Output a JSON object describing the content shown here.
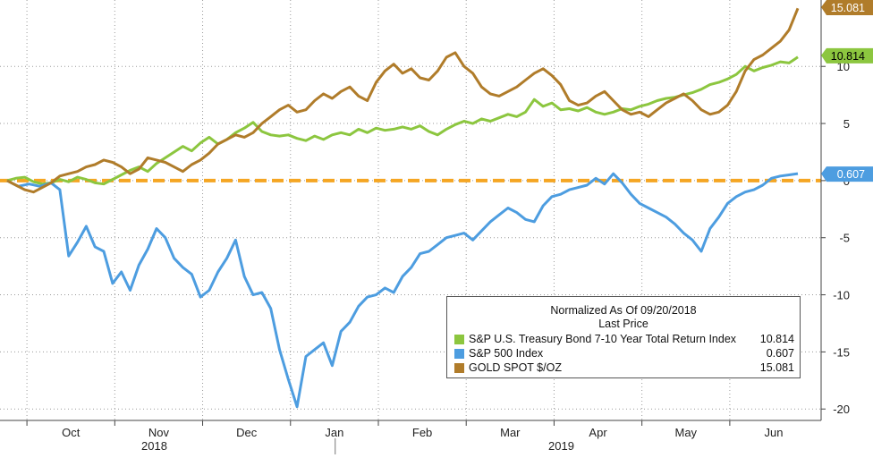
{
  "chart_data": {
    "type": "line",
    "ylim": [
      -21,
      15.5
    ],
    "yticks": [
      -20,
      -15,
      -10,
      -5,
      0,
      5,
      10
    ],
    "x_month_labels": [
      "Oct",
      "Nov",
      "Dec",
      "Jan",
      "Feb",
      "Mar",
      "Apr",
      "May",
      "Jun"
    ],
    "x_year_labels": [
      "2018",
      "2019"
    ],
    "grid": true,
    "legend": {
      "title_line1": "Normalized As Of 09/20/2018",
      "title_line2": "Last Price",
      "placement": "bottom-right"
    },
    "series": [
      {
        "name": "S&P U.S. Treasury Bond 7-10 Year Total Return Index",
        "last_value": "10.814",
        "color": "#8cc63f",
        "points": [
          [
            0,
            0
          ],
          [
            0.4,
            0.2
          ],
          [
            0.8,
            0.3
          ],
          [
            1.2,
            -0.1
          ],
          [
            1.6,
            -0.3
          ],
          [
            2.0,
            -0.2
          ],
          [
            2.4,
            0.1
          ],
          [
            2.8,
            -0.1
          ],
          [
            3.2,
            0.3
          ],
          [
            3.6,
            0.1
          ],
          [
            4.0,
            -0.2
          ],
          [
            4.4,
            -0.3
          ],
          [
            4.8,
            0.1
          ],
          [
            5.2,
            0.5
          ],
          [
            5.6,
            0.9
          ],
          [
            6.0,
            1.2
          ],
          [
            6.4,
            0.8
          ],
          [
            6.8,
            1.5
          ],
          [
            7.2,
            2.0
          ],
          [
            7.6,
            2.5
          ],
          [
            8.0,
            3.0
          ],
          [
            8.4,
            2.6
          ],
          [
            8.8,
            3.3
          ],
          [
            9.2,
            3.8
          ],
          [
            9.6,
            3.2
          ],
          [
            10.0,
            3.6
          ],
          [
            10.4,
            4.2
          ],
          [
            10.8,
            4.6
          ],
          [
            11.2,
            5.1
          ],
          [
            11.6,
            4.3
          ],
          [
            12.0,
            4.0
          ],
          [
            12.4,
            3.9
          ],
          [
            12.8,
            4.0
          ],
          [
            13.2,
            3.7
          ],
          [
            13.6,
            3.5
          ],
          [
            14.0,
            3.9
          ],
          [
            14.4,
            3.6
          ],
          [
            14.8,
            4.0
          ],
          [
            15.2,
            4.2
          ],
          [
            15.6,
            4.0
          ],
          [
            16.0,
            4.5
          ],
          [
            16.4,
            4.2
          ],
          [
            16.8,
            4.6
          ],
          [
            17.2,
            4.4
          ],
          [
            17.6,
            4.5
          ],
          [
            18.0,
            4.7
          ],
          [
            18.4,
            4.5
          ],
          [
            18.8,
            4.8
          ],
          [
            19.2,
            4.3
          ],
          [
            19.6,
            4.0
          ],
          [
            20.0,
            4.5
          ],
          [
            20.4,
            4.9
          ],
          [
            20.8,
            5.2
          ],
          [
            21.2,
            5.0
          ],
          [
            21.6,
            5.4
          ],
          [
            22.0,
            5.2
          ],
          [
            22.4,
            5.5
          ],
          [
            22.8,
            5.8
          ],
          [
            23.2,
            5.6
          ],
          [
            23.6,
            6.0
          ],
          [
            24.0,
            7.1
          ],
          [
            24.4,
            6.5
          ],
          [
            24.8,
            6.8
          ],
          [
            25.2,
            6.2
          ],
          [
            25.6,
            6.3
          ],
          [
            26.0,
            6.1
          ],
          [
            26.4,
            6.4
          ],
          [
            26.8,
            6.0
          ],
          [
            27.2,
            5.8
          ],
          [
            27.6,
            6.0
          ],
          [
            28.0,
            6.3
          ],
          [
            28.4,
            6.2
          ],
          [
            28.8,
            6.5
          ],
          [
            29.2,
            6.7
          ],
          [
            29.6,
            7.0
          ],
          [
            30.0,
            7.2
          ],
          [
            30.4,
            7.3
          ],
          [
            30.8,
            7.5
          ],
          [
            31.2,
            7.7
          ],
          [
            31.6,
            8.0
          ],
          [
            32.0,
            8.4
          ],
          [
            32.4,
            8.6
          ],
          [
            32.8,
            8.9
          ],
          [
            33.2,
            9.3
          ],
          [
            33.6,
            10.0
          ],
          [
            34.0,
            9.6
          ],
          [
            34.4,
            9.9
          ],
          [
            34.8,
            10.1
          ],
          [
            35.2,
            10.4
          ],
          [
            35.6,
            10.3
          ],
          [
            36.0,
            10.814
          ]
        ]
      },
      {
        "name": "S&P 500 Index",
        "last_value": "0.607",
        "color": "#4d9de0",
        "points": [
          [
            0,
            0
          ],
          [
            0.5,
            -0.5
          ],
          [
            1.0,
            -0.3
          ],
          [
            1.5,
            -0.5
          ],
          [
            2.0,
            -0.2
          ],
          [
            2.4,
            -0.8
          ],
          [
            2.8,
            -6.6
          ],
          [
            3.2,
            -5.4
          ],
          [
            3.6,
            -4.0
          ],
          [
            4.0,
            -5.8
          ],
          [
            4.4,
            -6.2
          ],
          [
            4.8,
            -9.0
          ],
          [
            5.2,
            -8.0
          ],
          [
            5.6,
            -9.6
          ],
          [
            6.0,
            -7.4
          ],
          [
            6.4,
            -6.0
          ],
          [
            6.8,
            -4.2
          ],
          [
            7.2,
            -5.0
          ],
          [
            7.6,
            -6.8
          ],
          [
            8.0,
            -7.6
          ],
          [
            8.4,
            -8.2
          ],
          [
            8.8,
            -10.2
          ],
          [
            9.2,
            -9.6
          ],
          [
            9.6,
            -8.0
          ],
          [
            10.0,
            -6.8
          ],
          [
            10.4,
            -5.2
          ],
          [
            10.8,
            -8.4
          ],
          [
            11.2,
            -10.0
          ],
          [
            11.6,
            -9.8
          ],
          [
            12.0,
            -11.2
          ],
          [
            12.4,
            -14.8
          ],
          [
            12.8,
            -17.4
          ],
          [
            13.2,
            -19.8
          ],
          [
            13.6,
            -15.4
          ],
          [
            14.0,
            -14.8
          ],
          [
            14.4,
            -14.2
          ],
          [
            14.8,
            -16.2
          ],
          [
            15.2,
            -13.2
          ],
          [
            15.6,
            -12.4
          ],
          [
            16.0,
            -11.0
          ],
          [
            16.4,
            -10.2
          ],
          [
            16.8,
            -10.0
          ],
          [
            17.2,
            -9.4
          ],
          [
            17.6,
            -9.8
          ],
          [
            18.0,
            -8.4
          ],
          [
            18.4,
            -7.6
          ],
          [
            18.8,
            -6.4
          ],
          [
            19.2,
            -6.2
          ],
          [
            19.6,
            -5.6
          ],
          [
            20.0,
            -5.0
          ],
          [
            20.4,
            -4.8
          ],
          [
            20.8,
            -4.6
          ],
          [
            21.2,
            -5.2
          ],
          [
            21.6,
            -4.4
          ],
          [
            22.0,
            -3.6
          ],
          [
            22.4,
            -3.0
          ],
          [
            22.8,
            -2.4
          ],
          [
            23.2,
            -2.8
          ],
          [
            23.6,
            -3.4
          ],
          [
            24.0,
            -3.6
          ],
          [
            24.4,
            -2.2
          ],
          [
            24.8,
            -1.4
          ],
          [
            25.2,
            -1.2
          ],
          [
            25.6,
            -0.8
          ],
          [
            26.0,
            -0.6
          ],
          [
            26.4,
            -0.4
          ],
          [
            26.8,
            0.2
          ],
          [
            27.2,
            -0.3
          ],
          [
            27.6,
            0.6
          ],
          [
            28.0,
            -0.2
          ],
          [
            28.4,
            -1.2
          ],
          [
            28.8,
            -2.0
          ],
          [
            29.2,
            -2.4
          ],
          [
            29.6,
            -2.8
          ],
          [
            30.0,
            -3.2
          ],
          [
            30.4,
            -3.8
          ],
          [
            30.8,
            -4.6
          ],
          [
            31.2,
            -5.2
          ],
          [
            31.6,
            -6.2
          ],
          [
            32.0,
            -4.2
          ],
          [
            32.4,
            -3.2
          ],
          [
            32.8,
            -2.0
          ],
          [
            33.2,
            -1.4
          ],
          [
            33.6,
            -1.0
          ],
          [
            34.0,
            -0.8
          ],
          [
            34.4,
            -0.4
          ],
          [
            34.8,
            0.2
          ],
          [
            35.2,
            0.4
          ],
          [
            35.6,
            0.5
          ],
          [
            36.0,
            0.607
          ]
        ]
      },
      {
        "name": "GOLD SPOT $/OZ",
        "last_value": "15.081",
        "color": "#b07c2a",
        "points": [
          [
            0,
            0
          ],
          [
            0.4,
            -0.4
          ],
          [
            0.8,
            -0.8
          ],
          [
            1.2,
            -1.0
          ],
          [
            1.6,
            -0.6
          ],
          [
            2.0,
            -0.2
          ],
          [
            2.4,
            0.4
          ],
          [
            2.8,
            0.6
          ],
          [
            3.2,
            0.8
          ],
          [
            3.6,
            1.2
          ],
          [
            4.0,
            1.4
          ],
          [
            4.4,
            1.8
          ],
          [
            4.8,
            1.6
          ],
          [
            5.2,
            1.2
          ],
          [
            5.6,
            0.6
          ],
          [
            6.0,
            1.0
          ],
          [
            6.4,
            2.0
          ],
          [
            6.8,
            1.8
          ],
          [
            7.2,
            1.6
          ],
          [
            7.6,
            1.2
          ],
          [
            8.0,
            0.8
          ],
          [
            8.4,
            1.4
          ],
          [
            8.8,
            1.8
          ],
          [
            9.2,
            2.4
          ],
          [
            9.6,
            3.2
          ],
          [
            10.0,
            3.6
          ],
          [
            10.4,
            4.0
          ],
          [
            10.8,
            3.8
          ],
          [
            11.2,
            4.2
          ],
          [
            11.6,
            5.0
          ],
          [
            12.0,
            5.6
          ],
          [
            12.4,
            6.2
          ],
          [
            12.8,
            6.6
          ],
          [
            13.2,
            6.0
          ],
          [
            13.6,
            6.2
          ],
          [
            14.0,
            7.0
          ],
          [
            14.4,
            7.6
          ],
          [
            14.8,
            7.2
          ],
          [
            15.2,
            7.8
          ],
          [
            15.6,
            8.2
          ],
          [
            16.0,
            7.4
          ],
          [
            16.4,
            7.0
          ],
          [
            16.8,
            8.6
          ],
          [
            17.2,
            9.6
          ],
          [
            17.6,
            10.2
          ],
          [
            18.0,
            9.4
          ],
          [
            18.4,
            9.8
          ],
          [
            18.8,
            9.0
          ],
          [
            19.2,
            8.8
          ],
          [
            19.6,
            9.6
          ],
          [
            20.0,
            10.8
          ],
          [
            20.4,
            11.2
          ],
          [
            20.8,
            10.0
          ],
          [
            21.2,
            9.4
          ],
          [
            21.6,
            8.2
          ],
          [
            22.0,
            7.6
          ],
          [
            22.4,
            7.4
          ],
          [
            22.8,
            7.8
          ],
          [
            23.2,
            8.2
          ],
          [
            23.6,
            8.8
          ],
          [
            24.0,
            9.4
          ],
          [
            24.4,
            9.8
          ],
          [
            24.8,
            9.2
          ],
          [
            25.2,
            8.4
          ],
          [
            25.6,
            7.0
          ],
          [
            26.0,
            6.6
          ],
          [
            26.4,
            6.8
          ],
          [
            26.8,
            7.4
          ],
          [
            27.2,
            7.8
          ],
          [
            27.6,
            7.0
          ],
          [
            28.0,
            6.2
          ],
          [
            28.4,
            5.8
          ],
          [
            28.8,
            6.0
          ],
          [
            29.2,
            5.6
          ],
          [
            29.6,
            6.2
          ],
          [
            30.0,
            6.8
          ],
          [
            30.4,
            7.2
          ],
          [
            30.8,
            7.6
          ],
          [
            31.2,
            7.0
          ],
          [
            31.6,
            6.2
          ],
          [
            32.0,
            5.8
          ],
          [
            32.4,
            6.0
          ],
          [
            32.8,
            6.6
          ],
          [
            33.2,
            7.8
          ],
          [
            33.6,
            9.6
          ],
          [
            34.0,
            10.6
          ],
          [
            34.4,
            11.0
          ],
          [
            34.8,
            11.6
          ],
          [
            35.2,
            12.2
          ],
          [
            35.6,
            13.2
          ],
          [
            36.0,
            15.081
          ]
        ]
      }
    ],
    "reference_line": {
      "y": 0,
      "color": "#f5a623"
    }
  }
}
